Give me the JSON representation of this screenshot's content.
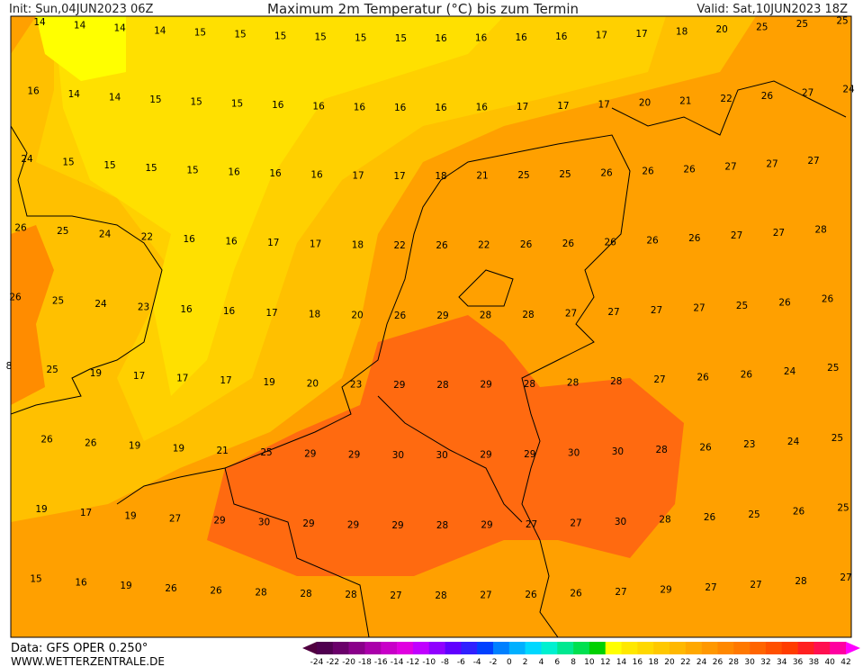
{
  "header": {
    "init": "Init: Sun,04JUN2023 06Z",
    "title": "Maximum 2m Temperatur (°C) bis zum Termin",
    "valid": "Valid: Sat,10JUN2023 18Z"
  },
  "grid_values": [
    [
      14,
      14,
      14,
      14,
      15,
      15,
      15,
      15,
      15,
      15,
      16,
      16,
      16,
      16,
      17,
      17,
      18,
      20,
      25,
      25,
      25
    ],
    [
      16,
      14,
      14,
      15,
      15,
      15,
      16,
      16,
      16,
      16,
      16,
      16,
      17,
      17,
      17,
      20,
      21,
      22,
      26,
      27,
      24
    ],
    [
      24,
      15,
      15,
      15,
      15,
      16,
      16,
      16,
      17,
      17,
      18,
      21,
      25,
      25,
      26,
      26,
      26,
      27,
      27,
      27
    ],
    [
      26,
      25,
      24,
      22,
      16,
      16,
      17,
      17,
      18,
      22,
      26,
      22,
      26,
      26,
      26,
      26,
      26,
      27,
      27,
      28
    ],
    [
      26,
      25,
      24,
      23,
      16,
      16,
      17,
      18,
      20,
      26,
      29,
      28,
      28,
      27,
      27,
      27,
      27,
      25,
      26,
      26
    ],
    [
      8,
      25,
      19,
      17,
      17,
      17,
      19,
      20,
      23,
      29,
      28,
      29,
      28,
      28,
      28,
      27,
      26,
      26,
      24,
      25
    ],
    [
      26,
      26,
      19,
      19,
      21,
      25,
      29,
      29,
      30,
      30,
      29,
      29,
      30,
      30,
      28,
      26,
      23,
      24,
      25
    ],
    [
      19,
      17,
      19,
      27,
      29,
      30,
      29,
      29,
      29,
      28,
      29,
      27,
      27,
      30,
      28,
      26,
      25,
      26,
      25
    ],
    [
      15,
      16,
      19,
      26,
      26,
      28,
      28,
      28,
      27,
      28,
      27,
      26,
      26,
      27,
      29,
      27,
      27,
      28,
      27
    ]
  ],
  "colorbar": {
    "ticks": [
      -24,
      -22,
      -20,
      -18,
      -16,
      -14,
      -12,
      -10,
      -8,
      -6,
      -4,
      -2,
      0,
      2,
      4,
      6,
      8,
      10,
      12,
      14,
      16,
      18,
      20,
      22,
      24,
      26,
      28,
      30,
      32,
      34,
      36,
      38,
      40,
      42
    ],
    "colors": [
      "#500040",
      "#500050",
      "#6a006a",
      "#8a008a",
      "#aa00aa",
      "#c800c8",
      "#e000e0",
      "#c000ff",
      "#9000ff",
      "#6000ff",
      "#3020ff",
      "#0040ff",
      "#0080ff",
      "#00b0ff",
      "#00d8ff",
      "#00f0d0",
      "#00e890",
      "#00e050",
      "#00d000",
      "#ffff00",
      "#ffe800",
      "#ffd800",
      "#ffc800",
      "#ffb800",
      "#ffa800",
      "#ff9800",
      "#ff8800",
      "#ff7800",
      "#ff6400",
      "#ff5000",
      "#ff3c00",
      "#ff2020",
      "#ff1050",
      "#ff00a0",
      "#ff00ff"
    ]
  },
  "footer": {
    "source": "Data: GFS OPER 0.250°",
    "site": "WWW.WETTERZENTRALE.DE"
  }
}
